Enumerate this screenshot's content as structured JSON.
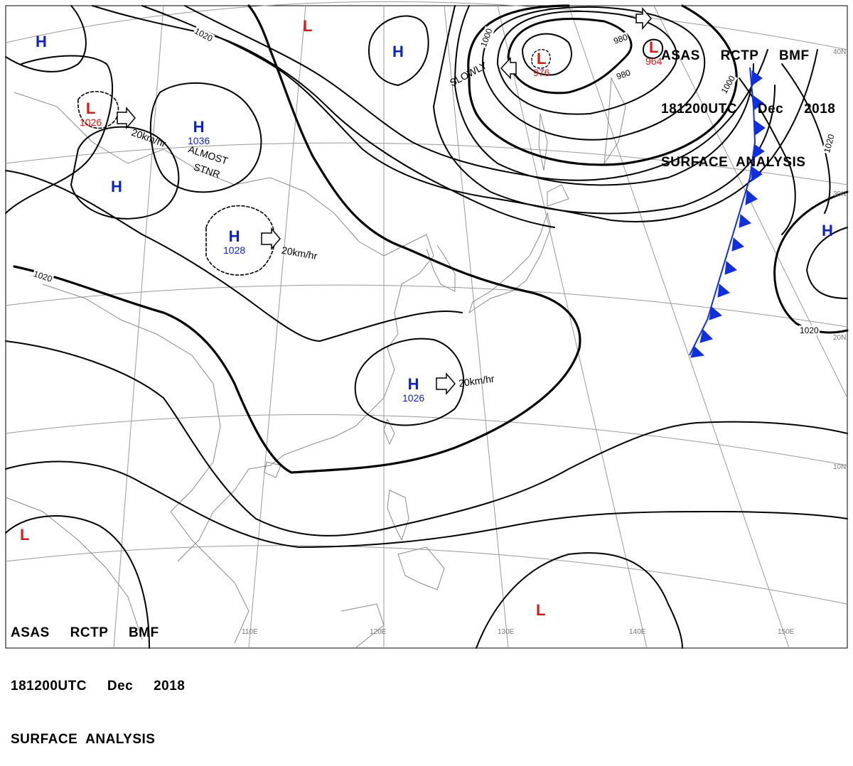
{
  "header": {
    "line1": "ASAS     RCTP     BMF",
    "line2": "181200UTC     Dec     2018",
    "line3": "SURFACE  ANALYSIS"
  },
  "pressure_systems": [
    {
      "symbol": "H",
      "value": "",
      "color": "#0a1fd6"
    },
    {
      "symbol": "L",
      "value": "",
      "color": "#e01515"
    },
    {
      "symbol": "H",
      "value": "",
      "color": "#0a1fd6"
    },
    {
      "symbol": "L",
      "value": "976",
      "color": "#e01515"
    },
    {
      "symbol": "L",
      "value": "964",
      "color": "#e01515"
    },
    {
      "symbol": "L",
      "value": "1026",
      "color": "#e01515"
    },
    {
      "symbol": "H",
      "value": "1036",
      "color": "#0a1fd6"
    },
    {
      "symbol": "H",
      "value": "",
      "color": "#0a1fd6"
    },
    {
      "symbol": "H",
      "value": "1028",
      "color": "#0a1fd6"
    },
    {
      "symbol": "H",
      "value": "1026",
      "color": "#0a1fd6"
    },
    {
      "symbol": "H",
      "value": "",
      "color": "#0a1fd6"
    },
    {
      "symbol": "L",
      "value": "",
      "color": "#e01515"
    },
    {
      "symbol": "L",
      "value": "",
      "color": "#e01515"
    }
  ],
  "motion_notes": {
    "low_west": "20km/hr",
    "almost": "ALMOST",
    "stnr": "STNR",
    "high_1028": "20km/hr",
    "high_1026": "20km/hr",
    "slowly": "SLOWLY"
  },
  "isobar_labels": {
    "a": "1020",
    "b": "1020",
    "c": "1020",
    "d": "1020",
    "e": "1000",
    "f": "1000",
    "g": "980",
    "h": "980"
  },
  "grid_labels": {
    "lat40": "40N",
    "lat30": "30N",
    "lat20": "20N",
    "lat10": "10N",
    "lon110": "110E",
    "lon120": "120E",
    "lon130": "130E",
    "lon140": "140E",
    "lon150": "150E"
  },
  "colors": {
    "high": "#0a1fd6",
    "low": "#e01515",
    "cold_front": "#1030e0",
    "coastline": "#8a8a8a",
    "grid": "#999999"
  }
}
